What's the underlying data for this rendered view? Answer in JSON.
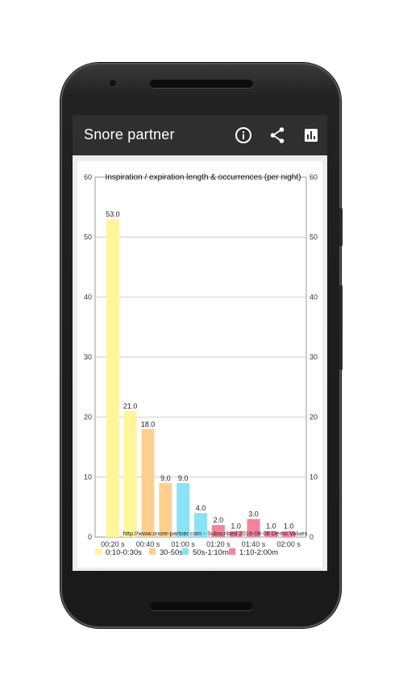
{
  "app": {
    "title": "Snore partner",
    "actions": [
      {
        "name": "info-icon"
      },
      {
        "name": "share-icon"
      },
      {
        "name": "bar-chart-icon"
      }
    ]
  },
  "chart_data": {
    "type": "bar",
    "title": "Inspiration / expiration length & occurrences (per night)",
    "ylim": [
      0,
      60
    ],
    "y_ticks": [
      0,
      10,
      20,
      30,
      40,
      50,
      60
    ],
    "x_tick_labels": [
      "00:20 s",
      "00:40 s",
      "01:00 s",
      "01:20 s",
      "01:40 s",
      "02:00 s"
    ],
    "grid": true,
    "legend_position": "bottom",
    "series": [
      {
        "name": "0:10-0:30s",
        "color": "#fff59a",
        "x": [
          20,
          30
        ],
        "values": [
          53,
          21
        ]
      },
      {
        "name": "30-50s",
        "color": "#ffcf8f",
        "x": [
          40,
          50
        ],
        "values": [
          18,
          9
        ]
      },
      {
        "name": "50s-1:10m",
        "color": "#8ae2f5",
        "x": [
          60,
          70
        ],
        "values": [
          9,
          4
        ]
      },
      {
        "name": "1:10-2:00m",
        "color": "#f4849c",
        "x": [
          80,
          90,
          100,
          110,
          120
        ],
        "values": [
          2,
          1,
          3,
          1,
          1
        ]
      }
    ],
    "data_labels": [
      "53.0",
      "21.0",
      "18.0",
      "9.0",
      "9.0",
      "4.0",
      "2.0",
      "1.0",
      "3.0",
      "1.0",
      "1.0"
    ],
    "credit": "http://www.snore-partner.com - Subscribed 2016-08-08 Demo Values"
  }
}
